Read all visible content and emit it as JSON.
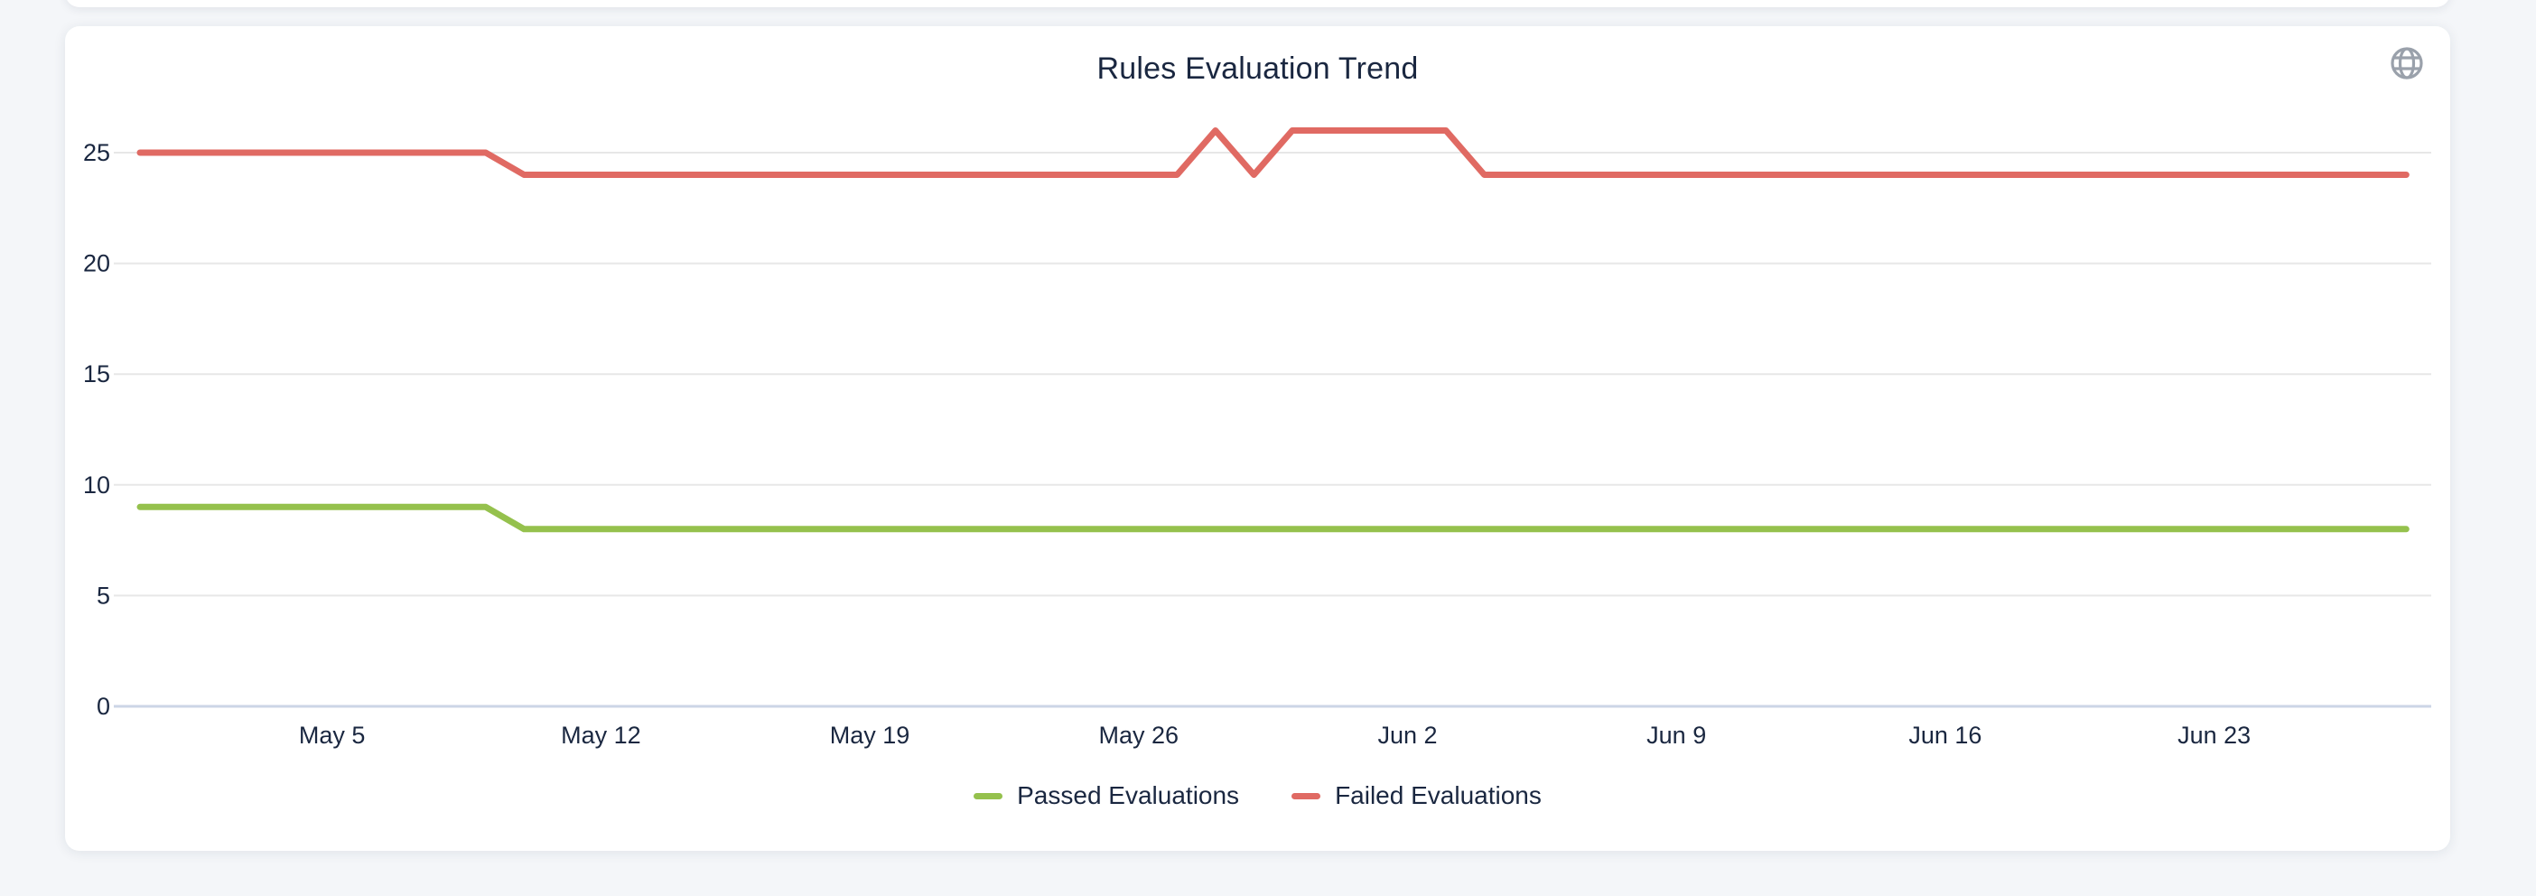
{
  "page": {
    "background_color": "#f4f6f9",
    "card_color": "#ffffff"
  },
  "header": {
    "title": "Rules Evaluation Trend",
    "globe_icon": "globe",
    "globe_icon_color": "#9aa1ab"
  },
  "chart_data": {
    "type": "line",
    "title": "Rules Evaluation Trend",
    "xlabel": "",
    "ylabel": "",
    "ylim": [
      0,
      27
    ],
    "yticks": [
      0,
      5,
      10,
      15,
      20,
      25
    ],
    "grid": true,
    "grid_color": "#e7e7e7",
    "axis_line_color": "#ccd5e6",
    "label_color": "#1a2740",
    "legend_position": "bottom",
    "x": [
      "Apr 30",
      "May 1",
      "May 2",
      "May 3",
      "May 4",
      "May 5",
      "May 6",
      "May 7",
      "May 8",
      "May 9",
      "May 10",
      "May 11",
      "May 12",
      "May 13",
      "May 14",
      "May 15",
      "May 16",
      "May 17",
      "May 18",
      "May 19",
      "May 20",
      "May 21",
      "May 22",
      "May 23",
      "May 24",
      "May 25",
      "May 26",
      "May 27",
      "May 28",
      "May 29",
      "May 30",
      "May 31",
      "Jun 1",
      "Jun 2",
      "Jun 3",
      "Jun 4",
      "Jun 5",
      "Jun 6",
      "Jun 7",
      "Jun 8",
      "Jun 9",
      "Jun 10",
      "Jun 11",
      "Jun 12",
      "Jun 13",
      "Jun 14",
      "Jun 15",
      "Jun 16",
      "Jun 17",
      "Jun 18",
      "Jun 19",
      "Jun 20",
      "Jun 21",
      "Jun 22",
      "Jun 23",
      "Jun 24",
      "Jun 25",
      "Jun 26",
      "Jun 27",
      "Jun 28"
    ],
    "xticks": [
      {
        "label": "May 5",
        "index": 5
      },
      {
        "label": "May 12",
        "index": 12
      },
      {
        "label": "May 19",
        "index": 19
      },
      {
        "label": "May 26",
        "index": 26
      },
      {
        "label": "Jun 2",
        "index": 33
      },
      {
        "label": "Jun 9",
        "index": 40
      },
      {
        "label": "Jun 16",
        "index": 47
      },
      {
        "label": "Jun 23",
        "index": 54
      }
    ],
    "series": [
      {
        "name": "Passed Evaluations",
        "color": "#95c14d",
        "values": [
          9,
          9,
          9,
          9,
          9,
          9,
          9,
          9,
          9,
          9,
          8,
          8,
          8,
          8,
          8,
          8,
          8,
          8,
          8,
          8,
          8,
          8,
          8,
          8,
          8,
          8,
          8,
          8,
          8,
          8,
          8,
          8,
          8,
          8,
          8,
          8,
          8,
          8,
          8,
          8,
          8,
          8,
          8,
          8,
          8,
          8,
          8,
          8,
          8,
          8,
          8,
          8,
          8,
          8,
          8,
          8,
          8,
          8,
          8,
          8
        ]
      },
      {
        "name": "Failed Evaluations",
        "color": "#e06a63",
        "values": [
          25,
          25,
          25,
          25,
          25,
          25,
          25,
          25,
          25,
          25,
          24,
          24,
          24,
          24,
          24,
          24,
          24,
          24,
          24,
          24,
          24,
          24,
          24,
          24,
          24,
          24,
          24,
          24,
          26,
          24,
          26,
          26,
          26,
          26,
          26,
          24,
          24,
          24,
          24,
          24,
          24,
          24,
          24,
          24,
          24,
          24,
          24,
          24,
          24,
          24,
          24,
          24,
          24,
          24,
          24,
          24,
          24,
          24,
          24,
          24
        ]
      }
    ]
  }
}
